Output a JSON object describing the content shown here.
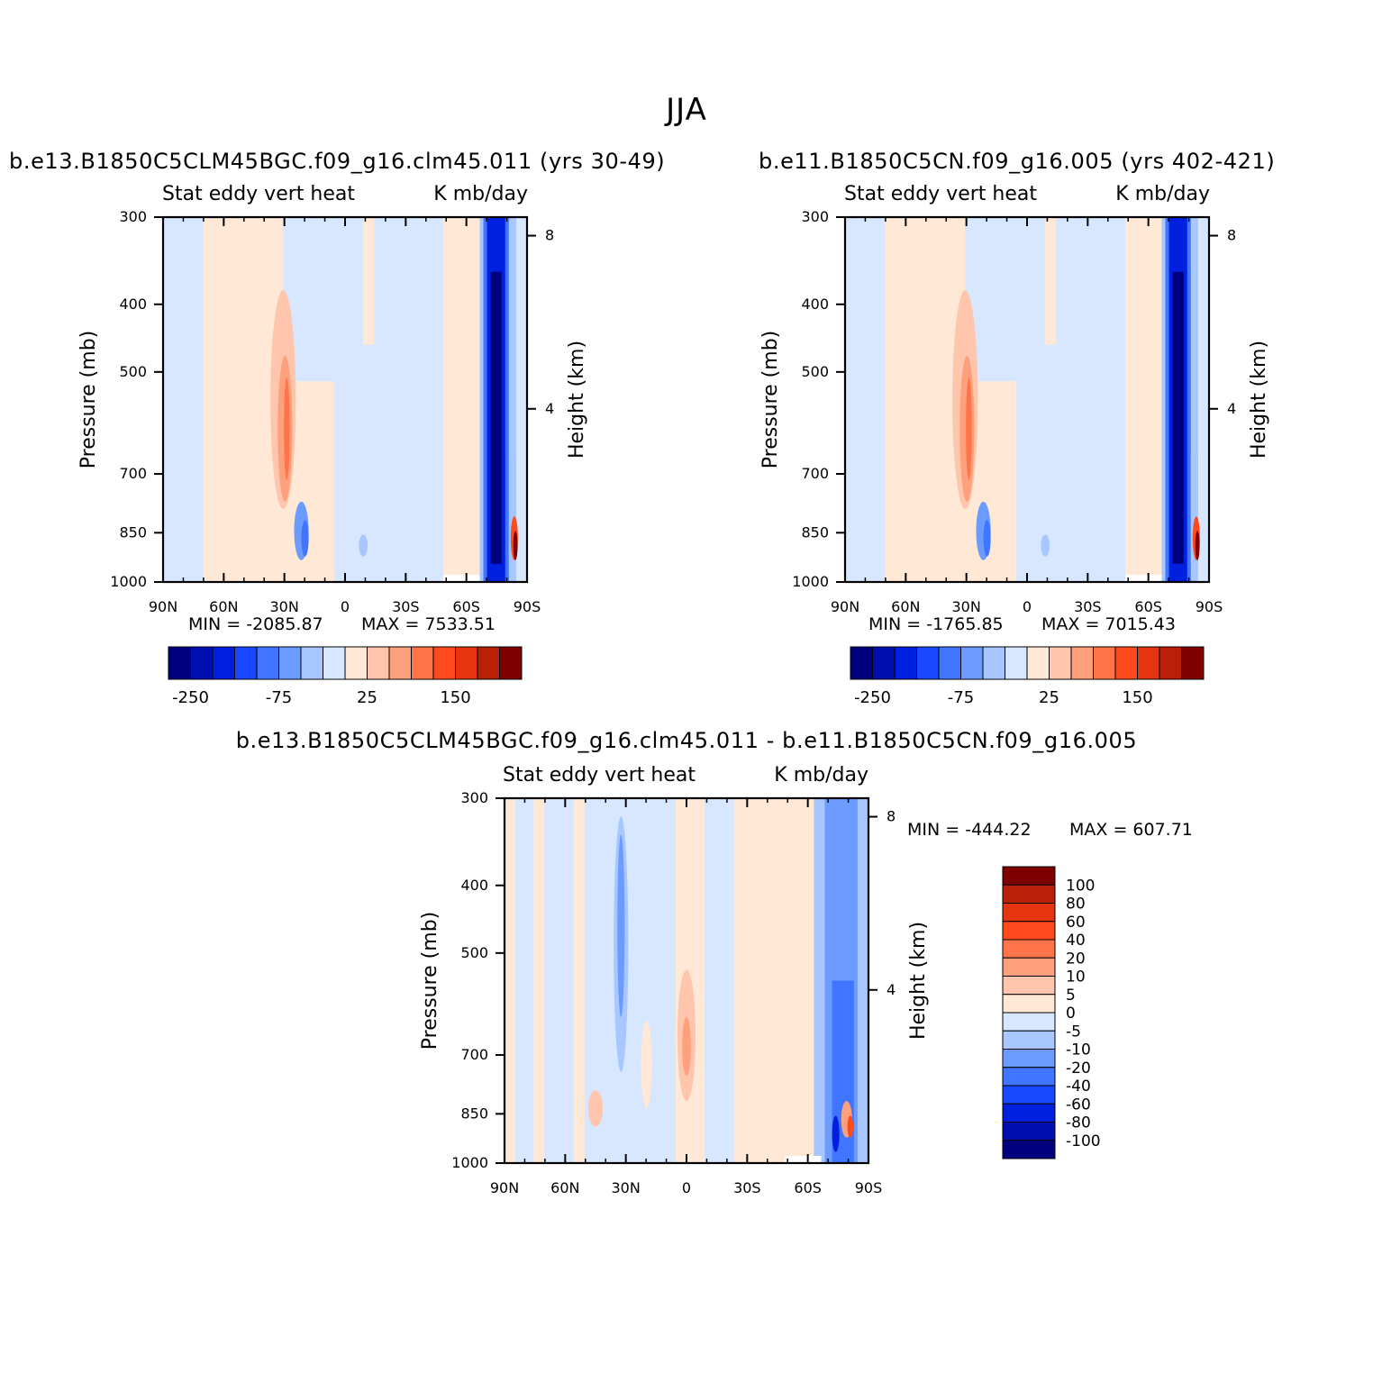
{
  "title": "JJA",
  "colors": {
    "levels": [
      "#00007f",
      "#0010b0",
      "#0020e0",
      "#1848ff",
      "#3f75ff",
      "#6b9bff",
      "#a8c6ff",
      "#d6e7ff",
      "#ffe8d6",
      "#ffc6ad",
      "#ffa07c",
      "#ff7448",
      "#ff4a1e",
      "#e63310",
      "#b82008",
      "#800000"
    ]
  },
  "chart_data": [
    {
      "type": "heatmap",
      "title": "b.e13.B1850C5CLM45BGC.f09_g16.clm45.011 (yrs 30-49)",
      "left_subtitle": "Stat eddy vert heat",
      "right_subtitle": "K mb/day",
      "ylabel": "Pressure (mb)",
      "ylabel_right": "Height (km)",
      "x_ticks": [
        "90N",
        "60N",
        "30N",
        "0",
        "30S",
        "60S",
        "90S"
      ],
      "y_ticks": [
        "300",
        "400",
        "500",
        "700",
        "850",
        "1000"
      ],
      "y_ticks_right": [
        "8",
        "4"
      ],
      "ylim": [
        1000,
        300
      ],
      "min_label": "MIN = -2085.87",
      "max_label": "MAX = 7533.51",
      "min": -2085.87,
      "max": 7533.51,
      "colorbar_labels": [
        "-250",
        "-75",
        "25",
        "150"
      ]
    },
    {
      "type": "heatmap",
      "title": "b.e11.B1850C5CN.f09_g16.005 (yrs 402-421)",
      "left_subtitle": "Stat eddy vert heat",
      "right_subtitle": "K mb/day",
      "ylabel": "Pressure (mb)",
      "ylabel_right": "Height (km)",
      "x_ticks": [
        "90N",
        "60N",
        "30N",
        "0",
        "30S",
        "60S",
        "90S"
      ],
      "y_ticks": [
        "300",
        "400",
        "500",
        "700",
        "850",
        "1000"
      ],
      "y_ticks_right": [
        "8",
        "4"
      ],
      "ylim": [
        1000,
        300
      ],
      "min_label": "MIN = -1765.85",
      "max_label": "MAX = 7015.43",
      "min": -1765.85,
      "max": 7015.43,
      "colorbar_labels": [
        "-250",
        "-75",
        "25",
        "150"
      ]
    },
    {
      "type": "heatmap",
      "title": "b.e13.B1850C5CLM45BGC.f09_g16.clm45.011 - b.e11.B1850C5CN.f09_g16.005",
      "left_subtitle": "Stat eddy vert heat",
      "right_subtitle": "K mb/day",
      "ylabel": "Pressure (mb)",
      "ylabel_right": "Height (km)",
      "x_ticks": [
        "90N",
        "60N",
        "30N",
        "0",
        "30S",
        "60S",
        "90S"
      ],
      "y_ticks": [
        "300",
        "400",
        "500",
        "700",
        "850",
        "1000"
      ],
      "y_ticks_right": [
        "8",
        "4"
      ],
      "ylim": [
        1000,
        300
      ],
      "min_label": "MIN = -444.22",
      "max_label": "MAX = 607.71",
      "min": -444.22,
      "max": 607.71,
      "colorbar_labels": [
        "100",
        "80",
        "60",
        "40",
        "20",
        "10",
        "5",
        "0",
        "-5",
        "-10",
        "-20",
        "-40",
        "-60",
        "-80",
        "-100"
      ]
    }
  ]
}
